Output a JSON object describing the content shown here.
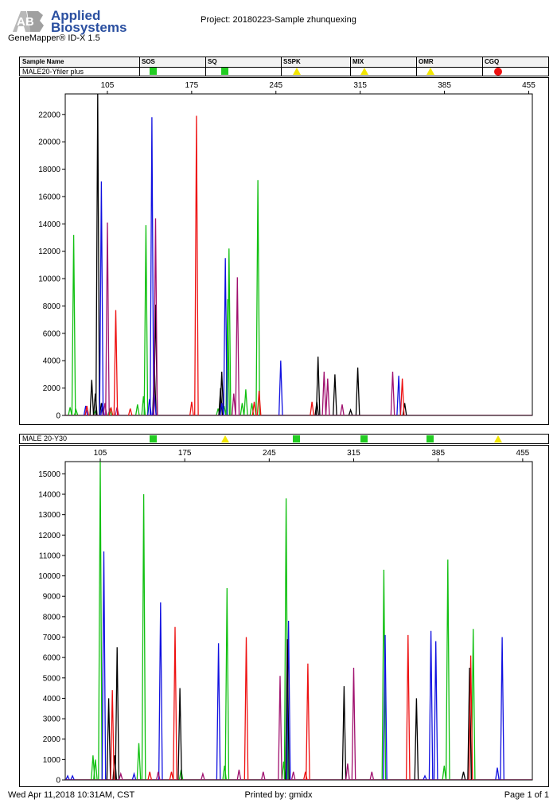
{
  "header": {
    "logo_initials": "AB",
    "logo_line1": "Applied",
    "logo_line2": "Biosystems",
    "product": "GeneMapper® ID-X  1.5",
    "project": "Project: 20180223-Sample zhunquexing"
  },
  "table": {
    "columns": [
      "Sample Name",
      "SOS",
      "SQ",
      "SSPK",
      "MIX",
      "OMR",
      "CGQ"
    ],
    "quality_colors": {
      "pass": "#22cc22",
      "check": "#f2e600",
      "fail": "#ee1111"
    }
  },
  "panels": [
    {
      "sample_name": "MALE20-Yfiler plus",
      "flags": [
        "pass",
        "pass",
        "check",
        "check",
        "check",
        "fail"
      ]
    },
    {
      "sample_name": "MALE 20-Y30",
      "flags": [
        "pass",
        "check",
        "pass",
        "pass",
        "pass",
        "check"
      ]
    }
  ],
  "chart_data": [
    {
      "type": "line",
      "title": "MALE20-Yfiler plus",
      "x_ticks": [
        105,
        175,
        245,
        315,
        385,
        455
      ],
      "xlim": [
        70,
        458
      ],
      "y_ticks": [
        0,
        2000,
        4000,
        6000,
        8000,
        10000,
        12000,
        14000,
        16000,
        18000,
        20000,
        22000
      ],
      "ylim": [
        0,
        23500
      ],
      "grid": false,
      "colors": {
        "blue": "#1010e0",
        "green": "#10c010",
        "black": "#000000",
        "red": "#ee1010",
        "purple": "#a0106e"
      },
      "series": [
        {
          "color": "green",
          "peaks": [
            [
              74,
              600
            ],
            [
              77,
              13200
            ],
            [
              79,
              400
            ],
            [
              95,
              300
            ],
            [
              107,
              500
            ],
            [
              130,
              800
            ],
            [
              135,
              1400
            ],
            [
              137,
              13900
            ],
            [
              197,
              500
            ],
            [
              202,
              700
            ],
            [
              205,
              8500
            ],
            [
              206,
              12200
            ],
            [
              217,
              900
            ],
            [
              220,
              1900
            ],
            [
              225,
              900
            ],
            [
              230,
              17200
            ]
          ]
        },
        {
          "color": "black",
          "peaks": [
            [
              92,
              2600
            ],
            [
              95,
              1600
            ],
            [
              97,
              23500
            ],
            [
              100,
              900
            ],
            [
              144,
              3600
            ],
            [
              145,
              8100
            ],
            [
              199,
              2000
            ],
            [
              200,
              3200
            ],
            [
              279,
              1000
            ],
            [
              280,
              4300
            ],
            [
              294,
              3000
            ],
            [
              307,
              400
            ],
            [
              313,
              3500
            ],
            [
              352,
              900
            ]
          ]
        },
        {
          "color": "blue",
          "peaks": [
            [
              87,
              700
            ],
            [
              100,
              17100
            ],
            [
              101,
              900
            ],
            [
              140,
              1200
            ],
            [
              142,
              21800
            ],
            [
              144,
              1500
            ],
            [
              200,
              900
            ],
            [
              203,
              11500
            ],
            [
              249,
              4000
            ],
            [
              347,
              2900
            ]
          ]
        },
        {
          "color": "purple",
          "peaks": [
            [
              103,
              900
            ],
            [
              105,
              14100
            ],
            [
              113,
              600
            ],
            [
              145,
              14400
            ],
            [
              210,
              1600
            ],
            [
              213,
              10100
            ],
            [
              285,
              3200
            ],
            [
              288,
              2700
            ],
            [
              300,
              800
            ],
            [
              342,
              3200
            ]
          ]
        },
        {
          "color": "red",
          "peaks": [
            [
              88,
              700
            ],
            [
              108,
              600
            ],
            [
              112,
              7700
            ],
            [
              124,
              500
            ],
            [
              175,
              1000
            ],
            [
              179,
              21900
            ],
            [
              227,
              1000
            ],
            [
              231,
              1800
            ],
            [
              275,
              1000
            ],
            [
              350,
              2700
            ]
          ]
        }
      ]
    },
    {
      "type": "line",
      "title": "MALE 20-Y30",
      "x_ticks": [
        105,
        175,
        245,
        315,
        385,
        455
      ],
      "xlim": [
        76,
        463
      ],
      "y_ticks": [
        0,
        1000,
        2000,
        3000,
        4000,
        5000,
        6000,
        7000,
        8000,
        9000,
        10000,
        11000,
        12000,
        13000,
        14000,
        15000
      ],
      "ylim": [
        0,
        15600
      ],
      "grid": false,
      "colors": {
        "blue": "#1010e0",
        "green": "#10c010",
        "black": "#000000",
        "red": "#ee1010",
        "purple": "#a0106e"
      },
      "series": [
        {
          "color": "green",
          "peaks": [
            [
              99,
              1200
            ],
            [
              101,
              1000
            ],
            [
              105,
              15700
            ],
            [
              137,
              1800
            ],
            [
              141,
              14000
            ],
            [
              172,
              500
            ],
            [
              208,
              700
            ],
            [
              210,
              9400
            ],
            [
              257,
              900
            ],
            [
              259,
              13800
            ],
            [
              340,
              10300
            ],
            [
              390,
              700
            ],
            [
              393,
              10800
            ],
            [
              414,
              7400
            ]
          ]
        },
        {
          "color": "blue",
          "peaks": [
            [
              78,
              200
            ],
            [
              82,
              200
            ],
            [
              108,
              11200
            ],
            [
              133,
              300
            ],
            [
              155,
              8700
            ],
            [
              203,
              6700
            ],
            [
              261,
              7800
            ],
            [
              341,
              7100
            ],
            [
              374,
              200
            ],
            [
              379,
              7300
            ],
            [
              383,
              6800
            ],
            [
              434,
              600
            ],
            [
              438,
              7000
            ]
          ]
        },
        {
          "color": "black",
          "peaks": [
            [
              112,
              4000
            ],
            [
              117,
              1200
            ],
            [
              119,
              6500
            ],
            [
              171,
              4500
            ],
            [
              260,
              6900
            ],
            [
              307,
              4600
            ],
            [
              367,
              4000
            ],
            [
              406,
              400
            ],
            [
              411,
              5500
            ]
          ]
        },
        {
          "color": "red",
          "peaks": [
            [
              115,
              4400
            ],
            [
              146,
              400
            ],
            [
              164,
              400
            ],
            [
              167,
              7500
            ],
            [
              226,
              7000
            ],
            [
              275,
              400
            ],
            [
              277,
              5700
            ],
            [
              360,
              7100
            ],
            [
              412,
              6100
            ]
          ]
        },
        {
          "color": "purple",
          "peaks": [
            [
              122,
              300
            ],
            [
              153,
              400
            ],
            [
              190,
              300
            ],
            [
              220,
              500
            ],
            [
              240,
              400
            ],
            [
              254,
              5100
            ],
            [
              265,
              400
            ],
            [
              310,
              800
            ],
            [
              315,
              5500
            ],
            [
              330,
              400
            ]
          ]
        }
      ]
    }
  ],
  "footer": {
    "printed_on": "Wed Apr 11,2018 10:31AM, CST",
    "printed_by": "Printed by: gmidx",
    "page": "Page 1 of 1"
  }
}
